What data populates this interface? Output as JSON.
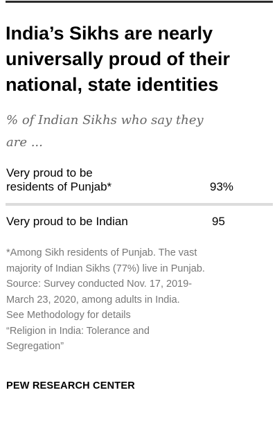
{
  "header": {
    "title_lines": [
      "India’s Sikhs are nearly",
      "universally proud of their",
      "national, state identities"
    ],
    "subtitle_lines": [
      "% of Indian Sikhs who say they",
      "are ..."
    ]
  },
  "chart_data": {
    "type": "table",
    "rows": [
      {
        "label_lines": [
          "Very proud to be",
          "residents of Punjab*"
        ],
        "value": 93,
        "display": "93%"
      },
      {
        "label_lines": [
          "Very proud to be Indian"
        ],
        "value": 95,
        "display": "95"
      }
    ]
  },
  "notes": {
    "lines": [
      "*Among Sikh residents of Punjab. The vast",
      "majority of Indian Sikhs (77%) live in Punjab.",
      "Source: Survey conducted Nov. 17, 2019-",
      "March 23, 2020, among adults in India.",
      "See Methodology for details",
      "“Religion in India: Tolerance and",
      "Segregation”"
    ]
  },
  "footer": {
    "brand": "PEW RESEARCH CENTER"
  },
  "colors": {
    "text": "#000000",
    "subtitle": "#666666",
    "note": "#777777",
    "divider": "#dcdcdc",
    "top_rule": "#2b2b2b"
  }
}
